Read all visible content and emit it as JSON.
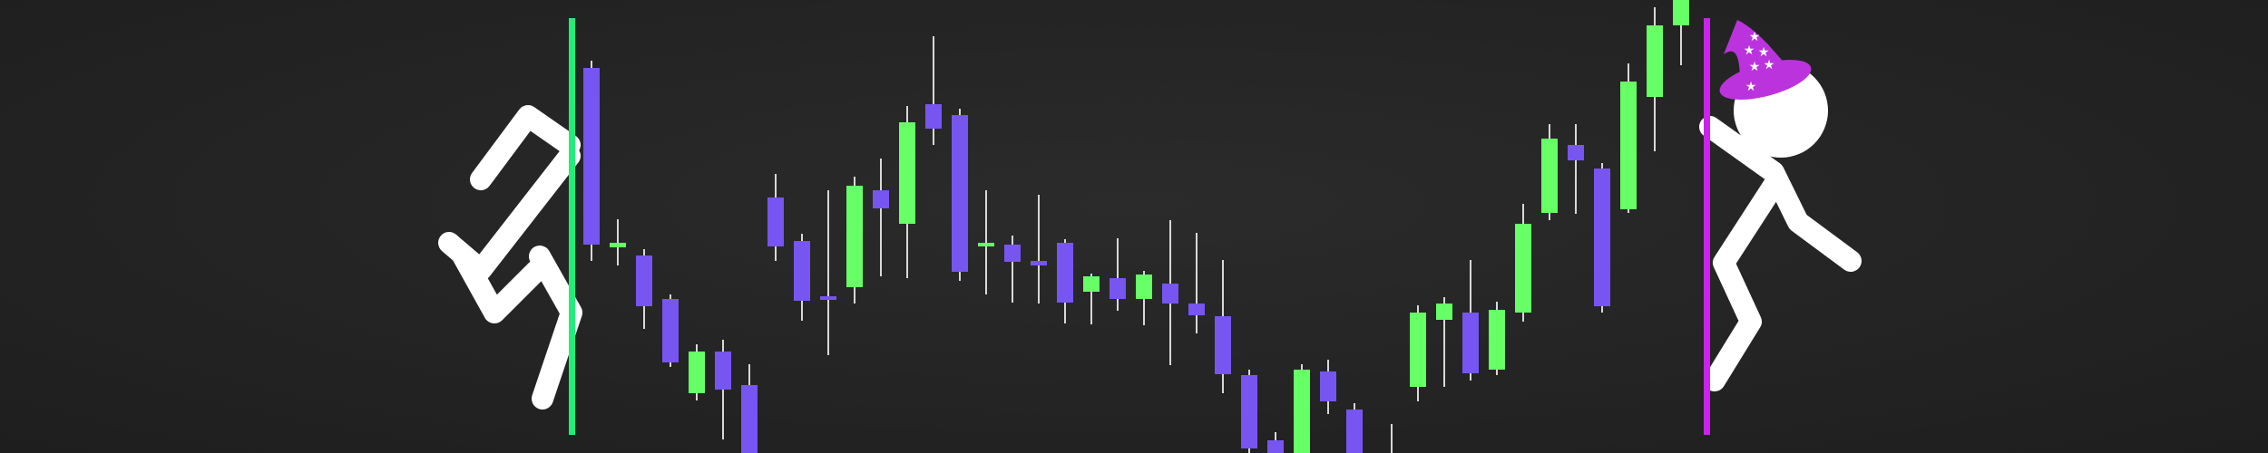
{
  "chart_data": {
    "type": "candlestick",
    "title": "",
    "xlabel": "",
    "ylabel": "",
    "axes_visible": false,
    "grid": false,
    "legend": "none",
    "ylim": [
      0,
      500
    ],
    "colors": {
      "up": "#66ff66",
      "down": "#7755f0",
      "wick": "#d8d8d8",
      "portal_left": "#22ee77",
      "portal_right": "#cc22ee",
      "hat": "#bb33dd",
      "figure": "#ffffff",
      "background": "#232323"
    },
    "candles": [
      {
        "x": 652,
        "open": 425,
        "close": 230,
        "high": 433,
        "low": 212
      },
      {
        "x": 681,
        "open": 227,
        "close": 232,
        "high": 258,
        "low": 207
      },
      {
        "x": 710,
        "open": 218,
        "close": 162,
        "high": 225,
        "low": 137
      },
      {
        "x": 739,
        "open": 170,
        "close": 100,
        "high": 175,
        "low": 95
      },
      {
        "x": 768,
        "open": 66,
        "close": 112,
        "high": 120,
        "low": 58
      },
      {
        "x": 797,
        "open": 112,
        "close": 70,
        "high": 125,
        "low": 15
      },
      {
        "x": 826,
        "open": 75,
        "close": -5,
        "high": 98,
        "low": -10
      },
      {
        "x": 855,
        "open": 282,
        "close": 228,
        "high": 308,
        "low": 212
      },
      {
        "x": 884,
        "open": 234,
        "close": 168,
        "high": 242,
        "low": 146
      },
      {
        "x": 913,
        "open": 173,
        "close": 172,
        "high": 290,
        "low": 108
      },
      {
        "x": 942,
        "open": 183,
        "close": 295,
        "high": 305,
        "low": 165
      },
      {
        "x": 971,
        "open": 290,
        "close": 270,
        "high": 325,
        "low": 195
      },
      {
        "x": 1000,
        "open": 253,
        "close": 365,
        "high": 383,
        "low": 193
      },
      {
        "x": 1029,
        "open": 385,
        "close": 358,
        "high": 460,
        "low": 340
      },
      {
        "x": 1058,
        "open": 373,
        "close": 200,
        "high": 380,
        "low": 190
      },
      {
        "x": 1087,
        "open": 229,
        "close": 232,
        "high": 290,
        "low": 175
      },
      {
        "x": 1116,
        "open": 230,
        "close": 211,
        "high": 240,
        "low": 166
      },
      {
        "x": 1145,
        "open": 212,
        "close": 207,
        "high": 285,
        "low": 165
      },
      {
        "x": 1174,
        "open": 232,
        "close": 166,
        "high": 236,
        "low": 143
      },
      {
        "x": 1203,
        "open": 178,
        "close": 195,
        "high": 198,
        "low": 142
      },
      {
        "x": 1232,
        "open": 193,
        "close": 170,
        "high": 237,
        "low": 157
      },
      {
        "x": 1261,
        "open": 170,
        "close": 197,
        "high": 201,
        "low": 141
      },
      {
        "x": 1290,
        "open": 187,
        "close": 165,
        "high": 257,
        "low": 97
      },
      {
        "x": 1319,
        "open": 165,
        "close": 152,
        "high": 243,
        "low": 132
      },
      {
        "x": 1348,
        "open": 151,
        "close": 87,
        "high": 213,
        "low": 66
      },
      {
        "x": 1377,
        "open": 86,
        "close": 5,
        "high": 92,
        "low": -10
      },
      {
        "x": 1406,
        "open": 14,
        "close": -10,
        "high": 23,
        "low": -15
      },
      {
        "x": 1435,
        "open": -8,
        "close": 92,
        "high": 98,
        "low": -15
      },
      {
        "x": 1464,
        "open": 90,
        "close": 57,
        "high": 103,
        "low": 43
      },
      {
        "x": 1493,
        "open": 48,
        "close": -5,
        "high": 55,
        "low": -12
      },
      {
        "x": 1534,
        "open": -3,
        "close": 0,
        "high": 32,
        "low": -8
      },
      {
        "x": 1563,
        "open": 73,
        "close": 155,
        "high": 163,
        "low": 57
      },
      {
        "x": 1592,
        "open": 147,
        "close": 165,
        "high": 172,
        "low": 73
      },
      {
        "x": 1621,
        "open": 155,
        "close": 88,
        "high": 213,
        "low": 80
      },
      {
        "x": 1650,
        "open": 92,
        "close": 158,
        "high": 167,
        "low": 86
      },
      {
        "x": 1679,
        "open": 155,
        "close": 253,
        "high": 275,
        "low": 145
      },
      {
        "x": 1708,
        "open": 265,
        "close": 347,
        "high": 363,
        "low": 257
      },
      {
        "x": 1737,
        "open": 340,
        "close": 323,
        "high": 363,
        "low": 264
      },
      {
        "x": 1766,
        "open": 314,
        "close": 162,
        "high": 320,
        "low": 155
      },
      {
        "x": 1795,
        "open": 269,
        "close": 410,
        "high": 430,
        "low": 265
      },
      {
        "x": 1824,
        "open": 393,
        "close": 472,
        "high": 492,
        "low": 333
      },
      {
        "x": 1853,
        "open": 472,
        "close": 500,
        "high": 510,
        "low": 428
      }
    ]
  }
}
